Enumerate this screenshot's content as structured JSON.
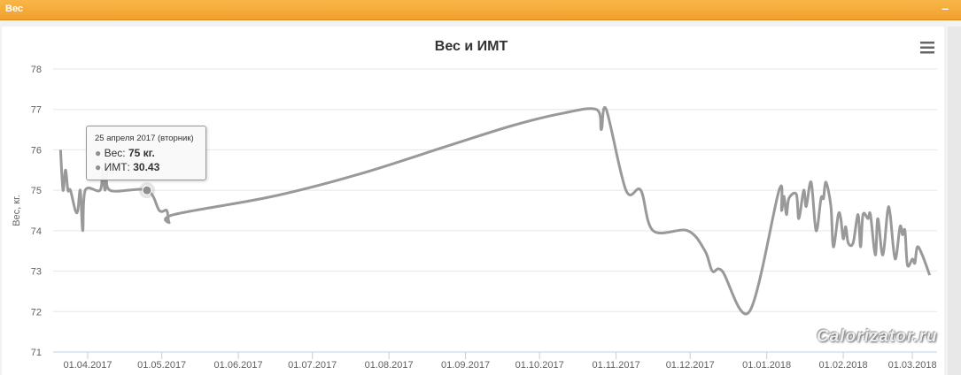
{
  "panel": {
    "title": "Вес",
    "minimize": "–"
  },
  "menu_icon": "hamburger-menu-icon",
  "watermark": "Calorizator.ru",
  "tooltip": {
    "date": "25 апреля 2017 (вторник)",
    "weight_label": "Вес: ",
    "weight_value": "75 кг.",
    "bmi_label": "ИМТ: ",
    "bmi_value": "30.43"
  },
  "chart_data": {
    "type": "line",
    "title": "Вес и ИМТ",
    "ylabel": "Вес, кг.",
    "xlabel": "",
    "ylim": [
      71,
      78
    ],
    "yticks": [
      "71",
      "72",
      "73",
      "74",
      "75",
      "76",
      "77",
      "78"
    ],
    "xticks": [
      "01.04.2017",
      "01.05.2017",
      "01.06.2017",
      "01.07.2017",
      "01.08.2017",
      "01.09.2017",
      "01.10.2017",
      "01.11.2017",
      "01.12.2017",
      "01.01.2018",
      "01.02.2018",
      "01.03.2018"
    ],
    "xlim": [
      "2017-03-18",
      "2018-03-11"
    ],
    "grid": true,
    "line_color": "#999999",
    "series": [
      {
        "points": [
          [
            "2017-03-21",
            76
          ],
          [
            "2017-03-22",
            75
          ],
          [
            "2017-03-23",
            75.5
          ],
          [
            "2017-03-24",
            75
          ],
          [
            "2017-03-25",
            75
          ],
          [
            "2017-03-27",
            74.5
          ],
          [
            "2017-03-28",
            74.5
          ],
          [
            "2017-03-29",
            75
          ],
          [
            "2017-03-30",
            74
          ],
          [
            "2017-03-31",
            75
          ],
          [
            "2017-04-06",
            75
          ],
          [
            "2017-04-07",
            75.5
          ],
          [
            "2017-04-08",
            75
          ],
          [
            "2017-04-09",
            75.5
          ],
          [
            "2017-04-10",
            75
          ],
          [
            "2017-04-25",
            75
          ],
          [
            "2017-04-30",
            74.5
          ],
          [
            "2017-05-03",
            74.5
          ],
          [
            "2017-05-04",
            74.2
          ],
          [
            "2017-05-06",
            74.4
          ],
          [
            "2017-06-15",
            74.85
          ],
          [
            "2017-07-20",
            75.4
          ],
          [
            "2017-08-25",
            76.1
          ],
          [
            "2017-09-20",
            76.6
          ],
          [
            "2017-10-10",
            76.9
          ],
          [
            "2017-10-24",
            77
          ],
          [
            "2017-10-26",
            76.5
          ],
          [
            "2017-10-28",
            77
          ],
          [
            "2017-11-05",
            75
          ],
          [
            "2017-11-11",
            75
          ],
          [
            "2017-11-16",
            74
          ],
          [
            "2017-11-30",
            74
          ],
          [
            "2017-12-07",
            73.5
          ],
          [
            "2017-12-10",
            73
          ],
          [
            "2017-12-14",
            73
          ],
          [
            "2017-12-25",
            72
          ],
          [
            "2018-01-06",
            75
          ],
          [
            "2018-01-07",
            74.5
          ],
          [
            "2018-01-08",
            74.85
          ],
          [
            "2018-01-09",
            74.4
          ],
          [
            "2018-01-10",
            74.8
          ],
          [
            "2018-01-13",
            74.9
          ],
          [
            "2018-01-14",
            74.3
          ],
          [
            "2018-01-16",
            75
          ],
          [
            "2018-01-17",
            74.6
          ],
          [
            "2018-01-19",
            75.2
          ],
          [
            "2018-01-21",
            74
          ],
          [
            "2018-01-23",
            74.8
          ],
          [
            "2018-01-24",
            74.8
          ],
          [
            "2018-01-25",
            75.2
          ],
          [
            "2018-01-27",
            74.6
          ],
          [
            "2018-01-28",
            73.6
          ],
          [
            "2018-01-30",
            74.4
          ],
          [
            "2018-01-31",
            74.3
          ],
          [
            "2018-02-01",
            73.8
          ],
          [
            "2018-02-02",
            74.1
          ],
          [
            "2018-02-03",
            73.7
          ],
          [
            "2018-02-05",
            73.7
          ],
          [
            "2018-02-07",
            74.4
          ],
          [
            "2018-02-08",
            73.6
          ],
          [
            "2018-02-09",
            74.4
          ],
          [
            "2018-02-11",
            74.3
          ],
          [
            "2018-02-12",
            74.4
          ],
          [
            "2018-02-14",
            73.4
          ],
          [
            "2018-02-15",
            74.3
          ],
          [
            "2018-02-17",
            73.4
          ],
          [
            "2018-02-19",
            74.5
          ],
          [
            "2018-02-20",
            74.4
          ],
          [
            "2018-02-22",
            73.3
          ],
          [
            "2018-02-24",
            74.1
          ],
          [
            "2018-02-25",
            73.9
          ],
          [
            "2018-02-26",
            74
          ],
          [
            "2018-02-27",
            73.15
          ],
          [
            "2018-03-01",
            73.3
          ],
          [
            "2018-03-02",
            73.2
          ],
          [
            "2018-03-03",
            73.6
          ],
          [
            "2018-03-05",
            73.4
          ],
          [
            "2018-03-08",
            72.9
          ]
        ]
      }
    ],
    "highlighted": {
      "date": "2017-04-25",
      "value": 75
    }
  }
}
